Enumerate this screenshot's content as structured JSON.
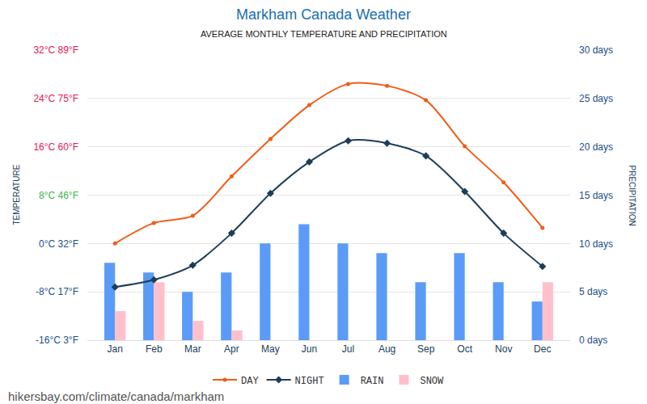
{
  "chart_data": {
    "type": "combo",
    "title": "Markham Canada Weather",
    "subtitle": "AVERAGE MONTHLY TEMPERATURE AND PRECIPITATION",
    "y_label": "TEMPERATURE",
    "y2_label": "PRECIPITATION",
    "source": "hikersbay.com/climate/canada/markham",
    "categories": [
      "Jan",
      "Feb",
      "Mar",
      "Apr",
      "May",
      "Jun",
      "Jul",
      "Aug",
      "Sep",
      "Oct",
      "Nov",
      "Dec"
    ],
    "series": [
      {
        "name": "DAY",
        "type": "line",
        "color": "#f25c19",
        "marker": "circle",
        "line_style": "solid",
        "values": [
          0.0,
          3.4,
          4.6,
          11.1,
          17.3,
          22.9,
          26.4,
          26.1,
          23.7,
          16.1,
          10.1,
          2.6
        ]
      },
      {
        "name": "NIGHT",
        "type": "line",
        "color": "#1c3d5a",
        "marker": "diamond",
        "line_style": "solid",
        "values": [
          -7.2,
          -6.0,
          -3.6,
          1.7,
          8.3,
          13.5,
          17.0,
          16.6,
          14.5,
          8.6,
          1.7,
          -3.8
        ]
      },
      {
        "name": "RAIN",
        "type": "bar",
        "axis": "y2",
        "color": "#5b9bf8",
        "values": [
          8,
          7,
          5,
          7,
          10,
          12,
          10,
          9,
          6,
          9,
          6,
          4
        ]
      },
      {
        "name": "SNOW",
        "type": "bar",
        "axis": "y2",
        "color": "#ffc0cb",
        "values": [
          3,
          6,
          2,
          1,
          0,
          0,
          0,
          0,
          0,
          0,
          0,
          6
        ]
      }
    ],
    "ylim": [
      -16,
      32
    ],
    "yticks": [
      {
        "value": -16,
        "label": "-16°C 3°F"
      },
      {
        "value": -8,
        "label": "-8°C 17°F"
      },
      {
        "value": 0,
        "label": "0°C 32°F"
      },
      {
        "value": 8,
        "label": "8°C 46°F"
      },
      {
        "value": 16,
        "label": "16°C 60°F"
      },
      {
        "value": 24,
        "label": "24°C 75°F"
      },
      {
        "value": 32,
        "label": "32°C 89°F"
      }
    ],
    "y2lim": [
      0,
      30
    ],
    "y2ticks": [
      {
        "value": 0,
        "label": "0 days"
      },
      {
        "value": 5,
        "label": "5 days"
      },
      {
        "value": 10,
        "label": "10 days"
      },
      {
        "value": 15,
        "label": "15 days"
      },
      {
        "value": 20,
        "label": "20 days"
      },
      {
        "value": 25,
        "label": "25 days"
      },
      {
        "value": 30,
        "label": "30 days"
      }
    ],
    "grid": true,
    "legend": "bottom"
  }
}
